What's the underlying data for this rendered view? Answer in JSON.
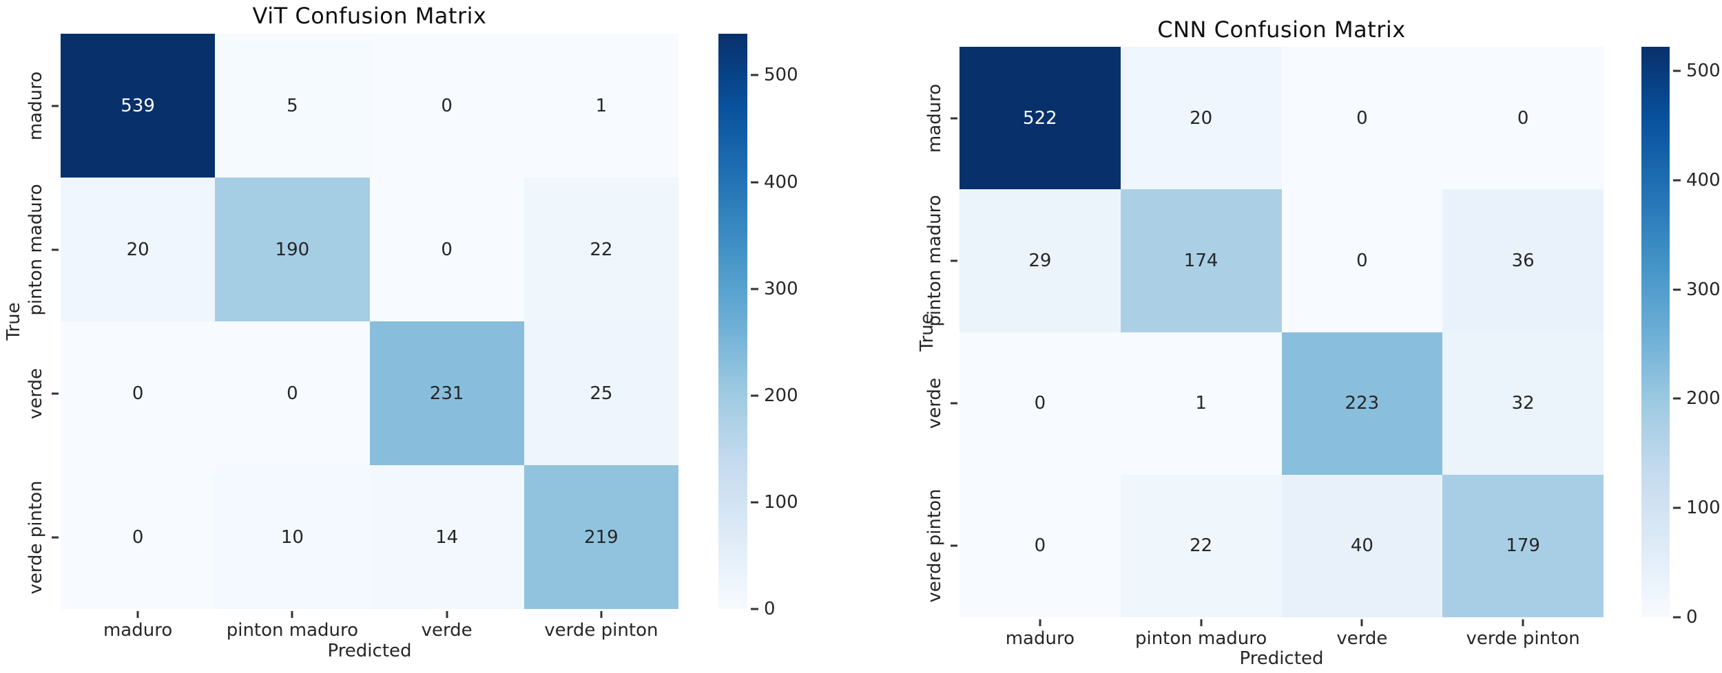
{
  "annotation_colors": {
    "on_light": "#262626",
    "on_dark": "#ffffff"
  },
  "colormap_stops": [
    "#f7fbff",
    "#deebf7",
    "#c6dbef",
    "#9ecae1",
    "#6baed6",
    "#4292c6",
    "#2171b5",
    "#08519c",
    "#08306b"
  ],
  "chart_data": [
    {
      "type": "heatmap",
      "title": "ViT Confusion Matrix",
      "xlabel": "Predicted",
      "ylabel": "True",
      "x_categories": [
        "maduro",
        "pinton maduro",
        "verde",
        "verde pinton"
      ],
      "y_categories": [
        "maduro",
        "pinton maduro",
        "verde",
        "verde pinton"
      ],
      "matrix": [
        [
          539,
          5,
          0,
          1
        ],
        [
          20,
          190,
          0,
          22
        ],
        [
          0,
          0,
          231,
          25
        ],
        [
          0,
          10,
          14,
          219
        ]
      ],
      "vmin": 0,
      "vmax": 539,
      "colorbar_ticks": [
        0,
        100,
        200,
        300,
        400,
        500
      ],
      "colormap": "Blues",
      "legend_position": "right"
    },
    {
      "type": "heatmap",
      "title": "CNN Confusion Matrix",
      "xlabel": "Predicted",
      "ylabel": "True",
      "x_categories": [
        "maduro",
        "pinton maduro",
        "verde",
        "verde pinton"
      ],
      "y_categories": [
        "maduro",
        "pinton maduro",
        "verde",
        "verde pinton"
      ],
      "matrix": [
        [
          522,
          20,
          0,
          0
        ],
        [
          29,
          174,
          0,
          36
        ],
        [
          0,
          1,
          223,
          32
        ],
        [
          0,
          22,
          40,
          179
        ]
      ],
      "vmin": 0,
      "vmax": 522,
      "colorbar_ticks": [
        0,
        100,
        200,
        300,
        400,
        500
      ],
      "colormap": "Blues",
      "legend_position": "right"
    }
  ]
}
